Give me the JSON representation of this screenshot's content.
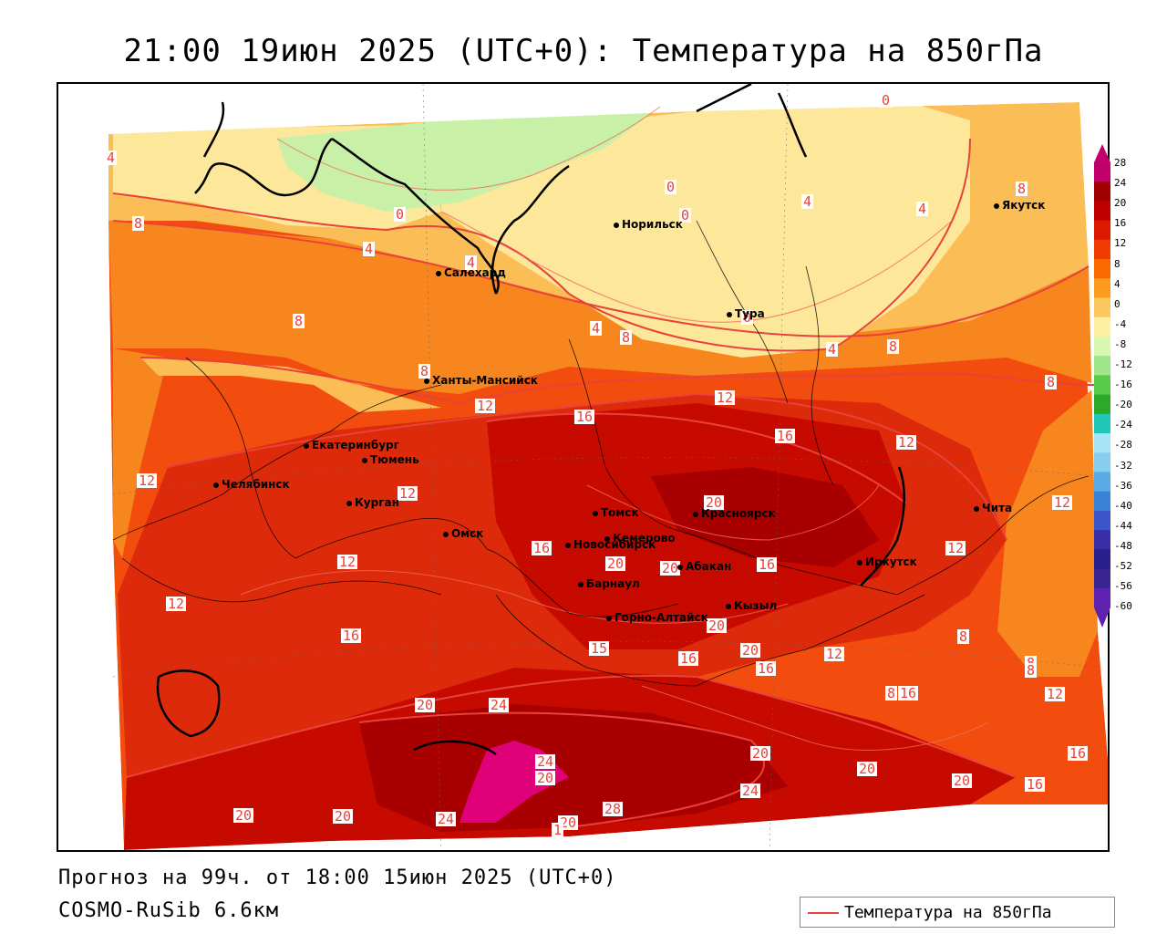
{
  "title": "21:00 19июн 2025 (UTC+0): Температура на 850гПа",
  "forecast_text": "Прогноз на 99ч. от 18:00 15июн 2025 (UTC+0)",
  "model_text": "COSMO-RuSib 6.6км",
  "legend_label": "Температура на 850гПа",
  "colors": {
    "contour": "#e8433a",
    "t_28": "#e0007a",
    "t_24": "#a80000",
    "t_20": "#c60a00",
    "t_16": "#dd2a0a",
    "t_12": "#f24d0f",
    "t_8": "#f7861e",
    "t_4": "#fbbd55",
    "t_0": "#fde79a",
    "t_m4": "#c8f0a6"
  },
  "colorbar": {
    "ticks": [
      "28",
      "24",
      "20",
      "16",
      "12",
      "8",
      "4",
      "0",
      "-4",
      "-8",
      "-12",
      "-16",
      "-20",
      "-24",
      "-28",
      "-32",
      "-36",
      "-40",
      "-44",
      "-48",
      "-52",
      "-56",
      "-60"
    ],
    "colors": [
      "#c2006b",
      "#9e0000",
      "#c00000",
      "#dc1a00",
      "#f03c00",
      "#f86a00",
      "#fc9b20",
      "#fdc860",
      "#fef0a0",
      "#d8f7b0",
      "#9fe58a",
      "#58cc4a",
      "#2ca82a",
      "#20c8b8",
      "#a8e4f5",
      "#86cdf0",
      "#5aaae6",
      "#3a82d6",
      "#3c55c8",
      "#3a2ea6",
      "#2a1e8a",
      "#3a2490",
      "#6020b0"
    ]
  },
  "cities": [
    {
      "name": "Норильск"
    },
    {
      "name": "Салехард"
    },
    {
      "name": "Тура"
    },
    {
      "name": "Якутск"
    },
    {
      "name": "Ханты-Мансийск"
    },
    {
      "name": "Екатеринбург"
    },
    {
      "name": "Тюмень"
    },
    {
      "name": "Челябинск"
    },
    {
      "name": "Курган"
    },
    {
      "name": "Омск"
    },
    {
      "name": "Новосибирск"
    },
    {
      "name": "Томск"
    },
    {
      "name": "Кемерово"
    },
    {
      "name": "Красноярск"
    },
    {
      "name": "Барнаул"
    },
    {
      "name": "Абакан"
    },
    {
      "name": "Горно-Алтайск"
    },
    {
      "name": "Кызыл"
    },
    {
      "name": "Иркутск"
    },
    {
      "name": "Чита"
    }
  ],
  "contour_labels": [
    "4",
    "0",
    "4",
    "4",
    "8",
    "8",
    "4",
    "8",
    "0",
    "0",
    "0",
    "4",
    "8",
    "4",
    "0",
    "4",
    "8",
    "8",
    "12",
    "16",
    "12",
    "8",
    "12",
    "16",
    "12",
    "12",
    "20",
    "16",
    "20",
    "20",
    "16",
    "15",
    "12",
    "8",
    "8",
    "12",
    "16",
    "20",
    "20",
    "16",
    "16",
    "12",
    "20",
    "24",
    "24",
    "20",
    "28",
    "24",
    "20",
    "24",
    "20",
    "20",
    "20",
    "16",
    "12",
    "20",
    "20",
    "16",
    "16",
    "8",
    "12",
    "12",
    "8",
    "8",
    "1"
  ]
}
